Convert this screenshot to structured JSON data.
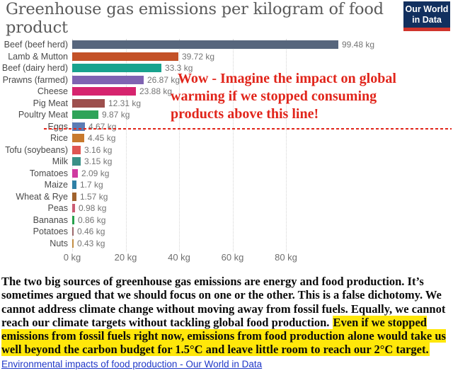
{
  "header": {
    "title": "Greenhouse gas emissions per kilogram of food product",
    "logo_line1": "Our World",
    "logo_line2": "in Data",
    "logo_bg": "#12305f",
    "logo_accent": "#d0342c"
  },
  "chart_data": {
    "type": "bar",
    "orientation": "horizontal",
    "title": "Greenhouse gas emissions per kilogram of food product",
    "unit": "kg",
    "grid": true,
    "legend": false,
    "xlim": [
      0,
      105
    ],
    "categories": [
      "Beef (beef herd)",
      "Lamb & Mutton",
      "Beef (dairy herd)",
      "Prawns (farmed)",
      "Cheese",
      "Pig Meat",
      "Poultry Meat",
      "Eggs",
      "Rice",
      "Tofu (soybeans)",
      "Milk",
      "Tomatoes",
      "Maize",
      "Wheat & Rye",
      "Peas",
      "Bananas",
      "Potatoes",
      "Nuts"
    ],
    "values": [
      99.48,
      39.72,
      33.3,
      26.87,
      23.88,
      12.31,
      9.87,
      4.67,
      4.45,
      3.16,
      3.15,
      2.09,
      1.7,
      1.57,
      0.98,
      0.86,
      0.46,
      0.43
    ],
    "value_labels": [
      "99.48 kg",
      "39.72 kg",
      "33.3 kg",
      "26.87 kg",
      "23.88 kg",
      "12.31 kg",
      "9.87 kg",
      "4.67 kg",
      "4.45 kg",
      "3.16 kg",
      "3.15 kg",
      "2.09 kg",
      "1.7 kg",
      "1.57 kg",
      "0.98 kg",
      "0.86 kg",
      "0.46 kg",
      "0.43 kg"
    ],
    "bar_colors": [
      "#57667d",
      "#c35127",
      "#18a38e",
      "#7f63b2",
      "#d6246e",
      "#9d4f4d",
      "#2fa359",
      "#5c7cb5",
      "#c87a2e",
      "#df5552",
      "#3a9187",
      "#cf3ba0",
      "#2e80a6",
      "#a0622d",
      "#ca5b73",
      "#27a14c",
      "#9c686b",
      "#c28d43"
    ],
    "x_ticks": [
      {
        "value": 0,
        "label": "0 kg"
      },
      {
        "value": 20,
        "label": "20 kg"
      },
      {
        "value": 40,
        "label": "40 kg"
      },
      {
        "value": 60,
        "label": "60 kg"
      },
      {
        "value": 80,
        "label": "80 kg"
      }
    ]
  },
  "annotation": {
    "text": "Wow - Imagine the impact on global warming if we stopped consuming products above this line!",
    "color": "#e1251b"
  },
  "divider": {
    "color": "#e1251b",
    "style": "dashed"
  },
  "description": {
    "before_highlight": "The two big sources of greenhouse gas emissions are energy and food production. It’s sometimes argued that we should focus on one or the other. This is a false dichotomy. We cannot address climate change without moving away from fossil fuels. Equally, we cannot reach our climate targets without tackling global food production. ",
    "highlight": "Even if we stopped emissions from fossil fuels right now, emissions from food production alone would take us well beyond the carbon budget for 1.5°C and leave little room to reach our 2°C target.",
    "highlight_color": "#ffe70a",
    "link_text": "Environmental impacts of food production - Our World in Data",
    "link_color": "#2038c8"
  }
}
